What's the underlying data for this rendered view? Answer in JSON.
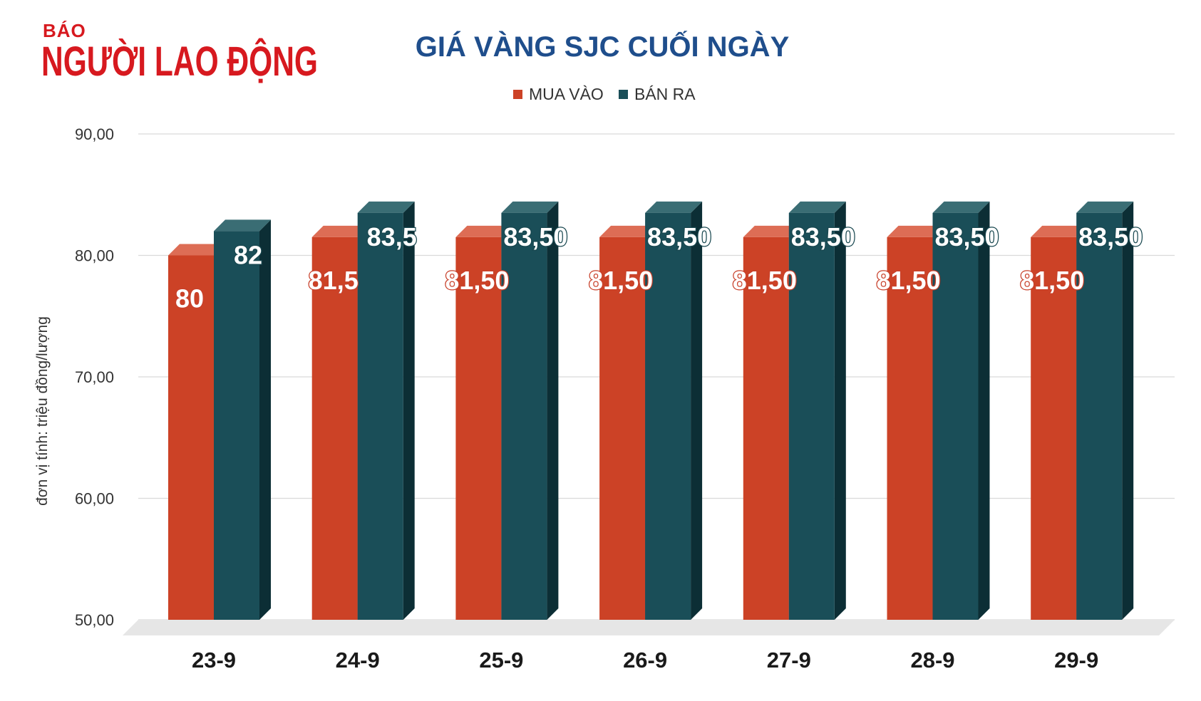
{
  "logo": {
    "small": "BÁO",
    "big": "NGƯỜI LAO ĐỘNG"
  },
  "colors": {
    "buy": "#cc4226",
    "buy_top": "#dd6d55",
    "buy_side": "#8e2c18",
    "sell": "#1a4e58",
    "sell_top": "#3a6d74",
    "sell_side": "#0c2e35",
    "title": "#1f4e8c",
    "logo": "#d7191f"
  },
  "chart_data": {
    "type": "bar",
    "title": "GIÁ VÀNG SJC CUỐI NGÀY",
    "ylabel": "đơn vị tính: triệu đồng/lượng",
    "xlabel": "",
    "ylim": [
      50,
      90
    ],
    "yticks": [
      "90,00",
      "80,00",
      "70,00",
      "60,00",
      "50,00"
    ],
    "ytick_values": [
      90,
      80,
      70,
      60,
      50
    ],
    "legend_position": "top-center",
    "grid": true,
    "categories": [
      "23-9",
      "24-9",
      "25-9",
      "26-9",
      "27-9",
      "28-9",
      "29-9"
    ],
    "series": [
      {
        "name": "MUA VÀO",
        "values": [
          80,
          81.5,
          81.5,
          81.5,
          81.5,
          81.5,
          81.5
        ],
        "labels": [
          "80",
          "81,5",
          "81,50",
          "81,50",
          "81,50",
          "81,50",
          "81,50"
        ]
      },
      {
        "name": "BÁN RA",
        "values": [
          82,
          83.5,
          83.5,
          83.5,
          83.5,
          83.5,
          83.5
        ],
        "labels": [
          "82",
          "83,5",
          "83,50",
          "83,50",
          "83,50",
          "83,50",
          "83,50"
        ]
      }
    ]
  }
}
